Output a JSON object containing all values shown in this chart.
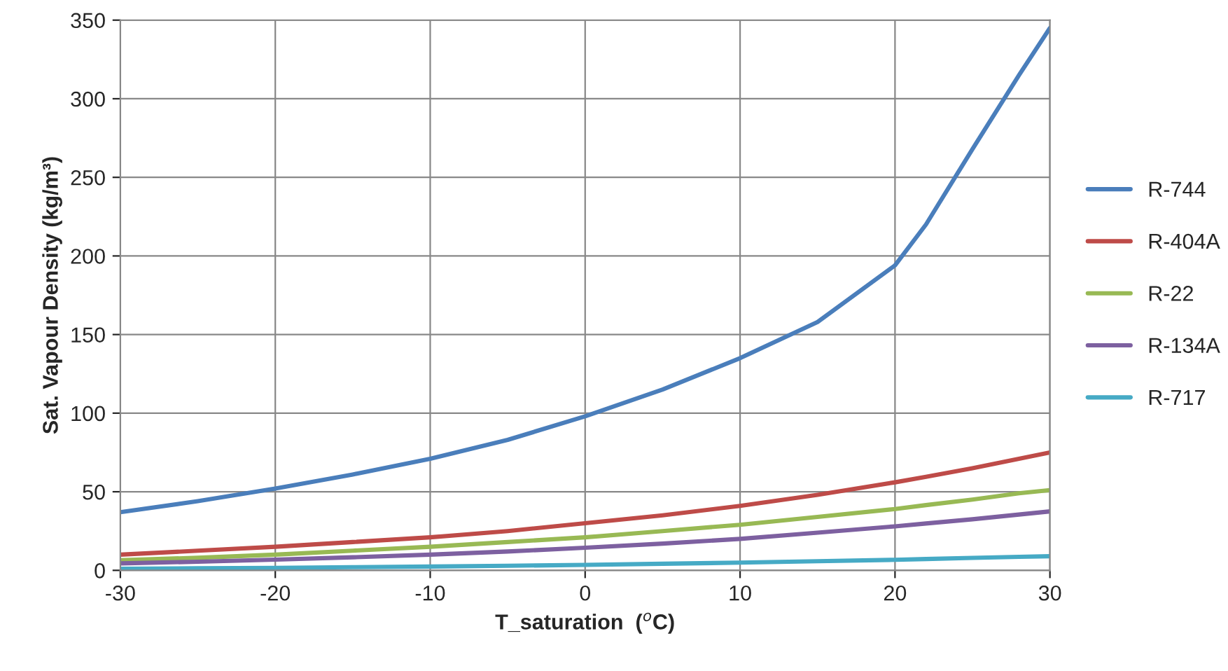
{
  "chart_data": {
    "type": "line",
    "xlabel": "T_saturation  ($^{o}$C)",
    "ylabel": "Sat. Vapour Density (kg/m³)",
    "x": [
      -30,
      -25,
      -20,
      -15,
      -10,
      -5,
      0,
      5,
      10,
      15,
      20,
      22,
      25,
      28,
      30
    ],
    "series": [
      {
        "name": "R-744",
        "color": "#4a7ebb",
        "values": [
          37,
          44,
          52,
          61,
          71,
          83,
          98,
          115,
          135,
          158,
          194,
          220,
          268,
          315,
          345
        ]
      },
      {
        "name": "R-404A",
        "color": "#be4b48",
        "values": [
          10,
          12.5,
          15,
          18,
          21,
          25,
          30,
          35,
          41,
          48,
          56,
          59.5,
          65,
          71,
          75
        ]
      },
      {
        "name": "R-22",
        "color": "#98b954",
        "values": [
          6.5,
          8,
          10,
          12.5,
          15,
          18,
          21,
          25,
          29,
          34,
          39,
          41.5,
          45,
          49,
          51
        ]
      },
      {
        "name": "R-134A",
        "color": "#7d60a0",
        "values": [
          4.4,
          5.5,
          6.8,
          8.3,
          10,
          12,
          14.4,
          17,
          20,
          24,
          28,
          29.8,
          32.5,
          35.5,
          37.5
        ]
      },
      {
        "name": "R-717",
        "color": "#46aac5",
        "values": [
          1.0,
          1.3,
          1.6,
          2.0,
          2.4,
          2.9,
          3.5,
          4.2,
          4.9,
          5.8,
          6.7,
          7.2,
          7.9,
          8.6,
          9.0
        ]
      }
    ],
    "xlim": [
      -30,
      30
    ],
    "xticks": [
      -30,
      -20,
      -10,
      0,
      10,
      20,
      30
    ],
    "ylim": [
      0,
      350
    ],
    "yticks": [
      0,
      50,
      100,
      150,
      200,
      250,
      300,
      350
    ],
    "grid": true,
    "legend": "right",
    "marker": "none",
    "line_style": "solid"
  }
}
